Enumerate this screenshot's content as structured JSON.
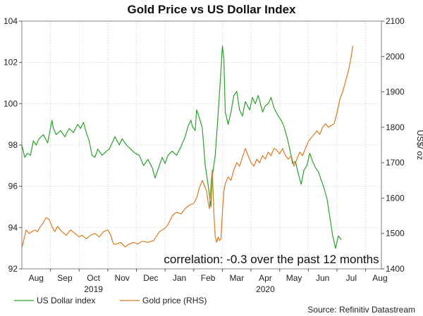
{
  "chart_data": {
    "type": "line",
    "title": "Gold Price vs US Dollar Index",
    "annotation": "correlation: -0.3 over the past 12 months",
    "source": "Source: Refinitiv Datastream",
    "x_months": [
      "Aug",
      "Sep",
      "Oct",
      "Nov",
      "Dec",
      "Jan",
      "Feb",
      "Mar",
      "Apr",
      "May",
      "Jun",
      "Jul",
      "Aug"
    ],
    "x_years": [
      "2019",
      "2020"
    ],
    "x_range_month_index": [
      0.0,
      12.55
    ],
    "y_left": {
      "ylim": [
        92,
        104
      ],
      "ticks": [
        "92",
        "94",
        "96",
        "98",
        "100",
        "102",
        "104"
      ]
    },
    "y_right": {
      "label": "US$/ oz",
      "ylim": [
        1400,
        2100
      ],
      "ticks": [
        "1400",
        "1500",
        "1600",
        "1700",
        "1800",
        "1900",
        "2000",
        "2100"
      ]
    },
    "series": [
      {
        "name": "US Dollar index",
        "axis": "left",
        "color": "#2ca02c",
        "points": [
          [
            0.0,
            98.0
          ],
          [
            0.1,
            97.4
          ],
          [
            0.2,
            97.6
          ],
          [
            0.3,
            97.5
          ],
          [
            0.4,
            98.2
          ],
          [
            0.5,
            98.0
          ],
          [
            0.6,
            98.3
          ],
          [
            0.75,
            98.5
          ],
          [
            0.9,
            98.1
          ],
          [
            1.0,
            98.8
          ],
          [
            1.05,
            99.2
          ],
          [
            1.1,
            98.8
          ],
          [
            1.2,
            98.5
          ],
          [
            1.35,
            98.7
          ],
          [
            1.5,
            98.4
          ],
          [
            1.65,
            98.8
          ],
          [
            1.8,
            98.6
          ],
          [
            1.95,
            99.0
          ],
          [
            2.05,
            98.8
          ],
          [
            2.15,
            99.1
          ],
          [
            2.25,
            98.6
          ],
          [
            2.35,
            98.2
          ],
          [
            2.45,
            97.5
          ],
          [
            2.55,
            97.4
          ],
          [
            2.65,
            97.8
          ],
          [
            2.8,
            97.5
          ],
          [
            2.95,
            97.7
          ],
          [
            3.05,
            97.8
          ],
          [
            3.15,
            98.1
          ],
          [
            3.25,
            98.4
          ],
          [
            3.4,
            98.0
          ],
          [
            3.5,
            98.3
          ],
          [
            3.65,
            98.0
          ],
          [
            3.8,
            97.8
          ],
          [
            3.95,
            97.6
          ],
          [
            4.1,
            97.5
          ],
          [
            4.25,
            97.0
          ],
          [
            4.4,
            97.3
          ],
          [
            4.55,
            96.9
          ],
          [
            4.65,
            96.4
          ],
          [
            4.75,
            96.8
          ],
          [
            4.9,
            97.4
          ],
          [
            5.0,
            97.1
          ],
          [
            5.1,
            97.5
          ],
          [
            5.25,
            97.7
          ],
          [
            5.4,
            97.5
          ],
          [
            5.55,
            97.9
          ],
          [
            5.7,
            98.4
          ],
          [
            5.8,
            98.9
          ],
          [
            5.9,
            99.2
          ],
          [
            5.95,
            98.9
          ],
          [
            6.05,
            98.7
          ],
          [
            6.1,
            99.7
          ],
          [
            6.2,
            99.3
          ],
          [
            6.3,
            98.8
          ],
          [
            6.4,
            97.0
          ],
          [
            6.5,
            96.1
          ],
          [
            6.6,
            95.0
          ],
          [
            6.65,
            96.5
          ],
          [
            6.75,
            97.5
          ],
          [
            6.85,
            99.5
          ],
          [
            6.95,
            101.6
          ],
          [
            7.0,
            102.8
          ],
          [
            7.05,
            102.2
          ],
          [
            7.1,
            99.6
          ],
          [
            7.2,
            99.0
          ],
          [
            7.3,
            99.6
          ],
          [
            7.4,
            100.4
          ],
          [
            7.5,
            100.6
          ],
          [
            7.6,
            99.7
          ],
          [
            7.7,
            99.4
          ],
          [
            7.8,
            100.1
          ],
          [
            7.95,
            99.7
          ],
          [
            8.05,
            100.3
          ],
          [
            8.15,
            100.0
          ],
          [
            8.25,
            100.4
          ],
          [
            8.4,
            99.6
          ],
          [
            8.5,
            99.9
          ],
          [
            8.6,
            100.0
          ],
          [
            8.7,
            100.3
          ],
          [
            8.8,
            99.8
          ],
          [
            8.95,
            99.4
          ],
          [
            9.05,
            99.2
          ],
          [
            9.15,
            98.9
          ],
          [
            9.25,
            98.4
          ],
          [
            9.35,
            97.8
          ],
          [
            9.45,
            97.1
          ],
          [
            9.55,
            97.2
          ],
          [
            9.65,
            96.6
          ],
          [
            9.75,
            96.1
          ],
          [
            9.85,
            96.8
          ],
          [
            9.95,
            97.0
          ],
          [
            10.05,
            97.6
          ],
          [
            10.15,
            97.2
          ],
          [
            10.25,
            96.9
          ],
          [
            10.35,
            96.7
          ],
          [
            10.45,
            96.3
          ],
          [
            10.55,
            95.9
          ],
          [
            10.65,
            95.4
          ],
          [
            10.75,
            94.5
          ],
          [
            10.85,
            93.6
          ],
          [
            10.95,
            93.0
          ],
          [
            11.05,
            93.6
          ],
          [
            11.15,
            93.4
          ]
        ]
      },
      {
        "name": "Gold price (RHS)",
        "axis": "right",
        "color": "#d97a1f",
        "points": [
          [
            0.0,
            1460
          ],
          [
            0.05,
            1475
          ],
          [
            0.15,
            1510
          ],
          [
            0.25,
            1500
          ],
          [
            0.35,
            1505
          ],
          [
            0.45,
            1510
          ],
          [
            0.55,
            1505
          ],
          [
            0.65,
            1520
          ],
          [
            0.75,
            1530
          ],
          [
            0.85,
            1545
          ],
          [
            0.95,
            1540
          ],
          [
            1.05,
            1520
          ],
          [
            1.15,
            1505
          ],
          [
            1.25,
            1520
          ],
          [
            1.4,
            1505
          ],
          [
            1.55,
            1495
          ],
          [
            1.7,
            1510
          ],
          [
            1.85,
            1500
          ],
          [
            2.0,
            1490
          ],
          [
            2.1,
            1495
          ],
          [
            2.25,
            1485
          ],
          [
            2.4,
            1495
          ],
          [
            2.55,
            1500
          ],
          [
            2.7,
            1490
          ],
          [
            2.85,
            1505
          ],
          [
            3.0,
            1510
          ],
          [
            3.1,
            1495
          ],
          [
            3.2,
            1470
          ],
          [
            3.3,
            1470
          ],
          [
            3.45,
            1475
          ],
          [
            3.6,
            1462
          ],
          [
            3.75,
            1470
          ],
          [
            3.9,
            1475
          ],
          [
            4.05,
            1470
          ],
          [
            4.2,
            1478
          ],
          [
            4.4,
            1475
          ],
          [
            4.6,
            1480
          ],
          [
            4.8,
            1505
          ],
          [
            5.0,
            1515
          ],
          [
            5.1,
            1525
          ],
          [
            5.25,
            1550
          ],
          [
            5.4,
            1560
          ],
          [
            5.55,
            1555
          ],
          [
            5.7,
            1570
          ],
          [
            5.85,
            1580
          ],
          [
            6.0,
            1585
          ],
          [
            6.1,
            1600
          ],
          [
            6.2,
            1630
          ],
          [
            6.3,
            1650
          ],
          [
            6.35,
            1640
          ],
          [
            6.45,
            1620
          ],
          [
            6.5,
            1590
          ],
          [
            6.55,
            1570
          ],
          [
            6.6,
            1640
          ],
          [
            6.65,
            1680
          ],
          [
            6.7,
            1560
          ],
          [
            6.75,
            1490
          ],
          [
            6.8,
            1475
          ],
          [
            6.85,
            1490
          ],
          [
            6.9,
            1480
          ],
          [
            6.95,
            1485
          ],
          [
            7.0,
            1560
          ],
          [
            7.05,
            1620
          ],
          [
            7.1,
            1640
          ],
          [
            7.2,
            1660
          ],
          [
            7.3,
            1650
          ],
          [
            7.4,
            1680
          ],
          [
            7.5,
            1700
          ],
          [
            7.6,
            1690
          ],
          [
            7.7,
            1715
          ],
          [
            7.8,
            1740
          ],
          [
            7.9,
            1720
          ],
          [
            8.0,
            1700
          ],
          [
            8.1,
            1690
          ],
          [
            8.2,
            1710
          ],
          [
            8.3,
            1700
          ],
          [
            8.4,
            1720
          ],
          [
            8.5,
            1710
          ],
          [
            8.6,
            1730
          ],
          [
            8.7,
            1720
          ],
          [
            8.8,
            1740
          ],
          [
            8.9,
            1735
          ],
          [
            9.0,
            1725
          ],
          [
            9.1,
            1740
          ],
          [
            9.2,
            1720
          ],
          [
            9.3,
            1710
          ],
          [
            9.4,
            1720
          ],
          [
            9.5,
            1690
          ],
          [
            9.6,
            1710
          ],
          [
            9.7,
            1730
          ],
          [
            9.8,
            1720
          ],
          [
            9.9,
            1740
          ],
          [
            10.0,
            1760
          ],
          [
            10.1,
            1770
          ],
          [
            10.2,
            1780
          ],
          [
            10.3,
            1790
          ],
          [
            10.4,
            1780
          ],
          [
            10.5,
            1800
          ],
          [
            10.6,
            1810
          ],
          [
            10.7,
            1800
          ],
          [
            10.8,
            1805
          ],
          [
            10.9,
            1810
          ],
          [
            11.0,
            1840
          ],
          [
            11.1,
            1880
          ],
          [
            11.2,
            1900
          ],
          [
            11.3,
            1930
          ],
          [
            11.4,
            1960
          ],
          [
            11.45,
            1980
          ],
          [
            11.5,
            2000
          ],
          [
            11.55,
            2030
          ]
        ]
      }
    ]
  }
}
